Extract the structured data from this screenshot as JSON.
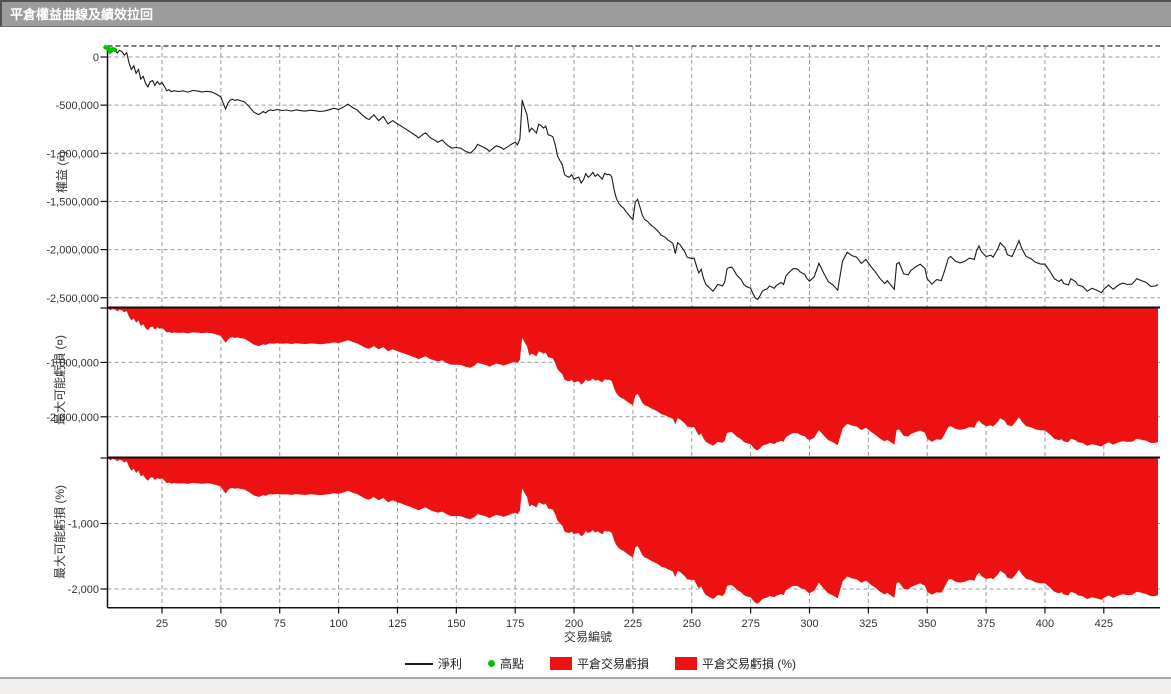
{
  "window": {
    "title": "平倉權益曲線及績效拉回"
  },
  "colors": {
    "titlebar_bg": "#9c9c9c",
    "titlebar_text": "#ffffff",
    "loss_red": "#ee1111",
    "high_green": "#00c300",
    "equity_line": "#1a1a1a",
    "gridline": "#9b9b9b",
    "axis": "#1c1c1c",
    "tick_text": "#333333"
  },
  "chart_data": {
    "type": "line",
    "description": "Three stacked panels sharing one x-axis: closed-position equity curve (line), maximum possible loss in currency (red area hanging from zero line), maximum possible loss in percent (red area hanging from zero line).",
    "x_axis": {
      "label": "交易編號",
      "range": [
        1,
        448
      ],
      "ticks": [
        25,
        50,
        75,
        100,
        125,
        150,
        175,
        200,
        225,
        250,
        275,
        300,
        325,
        350,
        375,
        400,
        425
      ],
      "grid": true
    },
    "panels": [
      {
        "id": "equity",
        "ylabel": "權益 (¤)",
        "yticks": [
          {
            "value": 0,
            "label": "0"
          },
          {
            "value": -500,
            "label": "-500,000"
          },
          {
            "value": -1000,
            "label": "-1,000,000"
          },
          {
            "value": -1500,
            "label": "-1,500,000"
          },
          {
            "value": -2000,
            "label": "-2,000,000"
          },
          {
            "value": -2500,
            "label": "-2,500,000"
          }
        ]
      },
      {
        "id": "max_loss_currency",
        "ylabel": "最大可能虧損 (¤)",
        "yticks": [
          {
            "value": -1000,
            "label": "-1,000,000"
          },
          {
            "value": -2000,
            "label": "-2,000,000"
          }
        ]
      },
      {
        "id": "max_loss_percent",
        "ylabel": "最大可能虧損 (%)",
        "yticks": [
          {
            "value": -1000,
            "label": "-1,000"
          },
          {
            "value": -2000,
            "label": "-2,000"
          }
        ]
      }
    ],
    "legend": [
      {
        "label": "淨利",
        "swatch": "line",
        "color": "#1a1a1a"
      },
      {
        "label": "高點",
        "swatch": "dot",
        "color": "#00c300"
      },
      {
        "label": "平倉交易虧損",
        "swatch": "rect",
        "color": "#ee1111"
      },
      {
        "label": "平倉交易虧損 (%)",
        "swatch": "rect",
        "color": "#ee1111"
      }
    ],
    "series": {
      "note": "equity_points = [trade_number, equity_in_thousands_of_currency]. Drawdown(¤) = equity - peak; Drawdown(%) = Drawdown(¤) * percent_per_thousand.",
      "peak_equity_thousands": 100,
      "percent_per_thousand": 0.85,
      "high_point_marker_trades": [
        1,
        5
      ],
      "equity_points": [
        [
          1,
          100
        ],
        [
          2,
          95
        ],
        [
          3,
          60
        ],
        [
          4,
          80
        ],
        [
          5,
          75
        ],
        [
          6,
          40
        ],
        [
          7,
          70
        ],
        [
          8,
          55
        ],
        [
          9,
          20
        ],
        [
          10,
          45
        ],
        [
          11,
          -60
        ],
        [
          12,
          -130
        ],
        [
          13,
          -90
        ],
        [
          14,
          -170
        ],
        [
          15,
          -130
        ],
        [
          16,
          -230
        ],
        [
          17,
          -200
        ],
        [
          18,
          -270
        ],
        [
          19,
          -310
        ],
        [
          20,
          -255
        ],
        [
          21,
          -245
        ],
        [
          22,
          -295
        ],
        [
          23,
          -255
        ],
        [
          24,
          -285
        ],
        [
          25,
          -265
        ],
        [
          26,
          -305
        ],
        [
          27,
          -350
        ],
        [
          28,
          -340
        ],
        [
          29,
          -360
        ],
        [
          30,
          -350
        ],
        [
          32,
          -358
        ],
        [
          34,
          -352
        ],
        [
          36,
          -365
        ],
        [
          38,
          -348
        ],
        [
          40,
          -352
        ],
        [
          42,
          -362
        ],
        [
          44,
          -356
        ],
        [
          46,
          -362
        ],
        [
          48,
          -385
        ],
        [
          50,
          -415
        ],
        [
          51,
          -480
        ],
        [
          52,
          -540
        ],
        [
          53,
          -480
        ],
        [
          54,
          -448
        ],
        [
          55,
          -438
        ],
        [
          56,
          -452
        ],
        [
          57,
          -442
        ],
        [
          58,
          -452
        ],
        [
          59,
          -458
        ],
        [
          60,
          -465
        ],
        [
          62,
          -515
        ],
        [
          64,
          -572
        ],
        [
          66,
          -598
        ],
        [
          67,
          -585
        ],
        [
          68,
          -565
        ],
        [
          69,
          -580
        ],
        [
          70,
          -560
        ],
        [
          71,
          -548
        ],
        [
          72,
          -556
        ],
        [
          74,
          -545
        ],
        [
          76,
          -556
        ],
        [
          78,
          -550
        ],
        [
          80,
          -562
        ],
        [
          82,
          -548
        ],
        [
          84,
          -558
        ],
        [
          86,
          -562
        ],
        [
          88,
          -552
        ],
        [
          90,
          -558
        ],
        [
          92,
          -566
        ],
        [
          94,
          -560
        ],
        [
          96,
          -548
        ],
        [
          98,
          -532
        ],
        [
          100,
          -545
        ],
        [
          102,
          -520
        ],
        [
          104,
          -490
        ],
        [
          106,
          -525
        ],
        [
          108,
          -552
        ],
        [
          110,
          -600
        ],
        [
          112,
          -640
        ],
        [
          113,
          -648
        ],
        [
          115,
          -600
        ],
        [
          117,
          -660
        ],
        [
          119,
          -618
        ],
        [
          121,
          -695
        ],
        [
          123,
          -660
        ],
        [
          125,
          -695
        ],
        [
          127,
          -725
        ],
        [
          129,
          -755
        ],
        [
          131,
          -788
        ],
        [
          133,
          -820
        ],
        [
          134,
          -840
        ],
        [
          136,
          -800
        ],
        [
          137,
          -788
        ],
        [
          139,
          -840
        ],
        [
          141,
          -865
        ],
        [
          142,
          -885
        ],
        [
          144,
          -862
        ],
        [
          146,
          -912
        ],
        [
          148,
          -945
        ],
        [
          150,
          -940
        ],
        [
          152,
          -948
        ],
        [
          154,
          -980
        ],
        [
          156,
          -998
        ],
        [
          158,
          -950
        ],
        [
          159,
          -908
        ],
        [
          161,
          -930
        ],
        [
          163,
          -955
        ],
        [
          164,
          -980
        ],
        [
          166,
          -940
        ],
        [
          167,
          -922
        ],
        [
          169,
          -940
        ],
        [
          170,
          -958
        ],
        [
          172,
          -930
        ],
        [
          173,
          -912
        ],
        [
          175,
          -885
        ],
        [
          176,
          -912
        ],
        [
          177,
          -850
        ],
        [
          178,
          -448
        ],
        [
          179,
          -530
        ],
        [
          180,
          -600
        ],
        [
          181,
          -775
        ],
        [
          182,
          -738
        ],
        [
          183,
          -760
        ],
        [
          184,
          -790
        ],
        [
          185,
          -698
        ],
        [
          186,
          -712
        ],
        [
          187,
          -738
        ],
        [
          188,
          -718
        ],
        [
          189,
          -808
        ],
        [
          190,
          -815
        ],
        [
          191,
          -828
        ],
        [
          192,
          -912
        ],
        [
          193,
          -1030
        ],
        [
          194,
          -1075
        ],
        [
          195,
          -1118
        ],
        [
          196,
          -1222
        ],
        [
          197,
          -1240
        ],
        [
          198,
          -1248
        ],
        [
          199,
          -1222
        ],
        [
          200,
          -1270
        ],
        [
          201,
          -1255
        ],
        [
          202,
          -1248
        ],
        [
          203,
          -1308
        ],
        [
          204,
          -1275
        ],
        [
          205,
          -1212
        ],
        [
          206,
          -1248
        ],
        [
          207,
          -1230
        ],
        [
          208,
          -1198
        ],
        [
          209,
          -1240
        ],
        [
          210,
          -1218
        ],
        [
          211,
          -1242
        ],
        [
          212,
          -1268
        ],
        [
          213,
          -1208
        ],
        [
          214,
          -1222
        ],
        [
          215,
          -1218
        ],
        [
          216,
          -1242
        ],
        [
          217,
          -1380
        ],
        [
          218,
          -1468
        ],
        [
          219,
          -1522
        ],
        [
          220,
          -1548
        ],
        [
          221,
          -1568
        ],
        [
          222,
          -1602
        ],
        [
          223,
          -1632
        ],
        [
          224,
          -1662
        ],
        [
          225,
          -1688
        ],
        [
          226,
          -1508
        ],
        [
          227,
          -1478
        ],
        [
          228,
          -1560
        ],
        [
          229,
          -1642
        ],
        [
          230,
          -1688
        ],
        [
          231,
          -1702
        ],
        [
          232,
          -1728
        ],
        [
          233,
          -1752
        ],
        [
          234,
          -1772
        ],
        [
          235,
          -1792
        ],
        [
          236,
          -1818
        ],
        [
          237,
          -1852
        ],
        [
          238,
          -1862
        ],
        [
          239,
          -1878
        ],
        [
          240,
          -1902
        ],
        [
          241,
          -1918
        ],
        [
          242,
          -1938
        ],
        [
          243,
          -2042
        ],
        [
          244,
          -1928
        ],
        [
          245,
          -1948
        ],
        [
          246,
          -1985
        ],
        [
          247,
          -2022
        ],
        [
          248,
          -2078
        ],
        [
          249,
          -2085
        ],
        [
          250,
          -2092
        ],
        [
          251,
          -2088
        ],
        [
          252,
          -2172
        ],
        [
          253,
          -2242
        ],
        [
          254,
          -2205
        ],
        [
          255,
          -2298
        ],
        [
          256,
          -2362
        ],
        [
          257,
          -2385
        ],
        [
          258,
          -2408
        ],
        [
          259,
          -2432
        ],
        [
          260,
          -2400
        ],
        [
          261,
          -2362
        ],
        [
          262,
          -2368
        ],
        [
          263,
          -2378
        ],
        [
          264,
          -2338
        ],
        [
          265,
          -2198
        ],
        [
          266,
          -2185
        ],
        [
          267,
          -2182
        ],
        [
          268,
          -2218
        ],
        [
          269,
          -2262
        ],
        [
          270,
          -2288
        ],
        [
          271,
          -2312
        ],
        [
          272,
          -2358
        ],
        [
          273,
          -2382
        ],
        [
          274,
          -2392
        ],
        [
          275,
          -2402
        ],
        [
          276,
          -2458
        ],
        [
          277,
          -2502
        ],
        [
          278,
          -2518
        ],
        [
          279,
          -2478
        ],
        [
          280,
          -2432
        ],
        [
          281,
          -2415
        ],
        [
          282,
          -2408
        ],
        [
          283,
          -2378
        ],
        [
          284,
          -2388
        ],
        [
          285,
          -2402
        ],
        [
          286,
          -2372
        ],
        [
          287,
          -2355
        ],
        [
          288,
          -2342
        ],
        [
          289,
          -2362
        ],
        [
          290,
          -2272
        ],
        [
          291,
          -2245
        ],
        [
          292,
          -2222
        ],
        [
          293,
          -2198
        ],
        [
          294,
          -2198
        ],
        [
          295,
          -2202
        ],
        [
          296,
          -2232
        ],
        [
          297,
          -2245
        ],
        [
          298,
          -2258
        ],
        [
          299,
          -2302
        ],
        [
          300,
          -2328
        ],
        [
          302,
          -2282
        ],
        [
          304,
          -2142
        ],
        [
          306,
          -2242
        ],
        [
          308,
          -2332
        ],
        [
          310,
          -2368
        ],
        [
          312,
          -2422
        ],
        [
          314,
          -2122
        ],
        [
          316,
          -2028
        ],
        [
          318,
          -2062
        ],
        [
          320,
          -2078
        ],
        [
          322,
          -2142
        ],
        [
          324,
          -2102
        ],
        [
          326,
          -2172
        ],
        [
          328,
          -2232
        ],
        [
          330,
          -2302
        ],
        [
          332,
          -2352
        ],
        [
          333,
          -2322
        ],
        [
          335,
          -2382
        ],
        [
          336,
          -2412
        ],
        [
          337,
          -2148
        ],
        [
          338,
          -2132
        ],
        [
          340,
          -2252
        ],
        [
          342,
          -2262
        ],
        [
          343,
          -2218
        ],
        [
          345,
          -2182
        ],
        [
          347,
          -2152
        ],
        [
          349,
          -2195
        ],
        [
          350,
          -2302
        ],
        [
          352,
          -2358
        ],
        [
          354,
          -2312
        ],
        [
          356,
          -2322
        ],
        [
          357,
          -2248
        ],
        [
          359,
          -2088
        ],
        [
          360,
          -2072
        ],
        [
          362,
          -2122
        ],
        [
          364,
          -2138
        ],
        [
          366,
          -2122
        ],
        [
          368,
          -2088
        ],
        [
          370,
          -2102
        ],
        [
          371,
          -2008
        ],
        [
          372,
          -1962
        ],
        [
          373,
          -2022
        ],
        [
          375,
          -2072
        ],
        [
          377,
          -2058
        ],
        [
          378,
          -2078
        ],
        [
          380,
          -1992
        ],
        [
          381,
          -1928
        ],
        [
          383,
          -1978
        ],
        [
          384,
          -2052
        ],
        [
          386,
          -2072
        ],
        [
          387,
          -2022
        ],
        [
          389,
          -1908
        ],
        [
          390,
          -1978
        ],
        [
          392,
          -2072
        ],
        [
          394,
          -2092
        ],
        [
          396,
          -2132
        ],
        [
          398,
          -2148
        ],
        [
          400,
          -2152
        ],
        [
          402,
          -2222
        ],
        [
          404,
          -2302
        ],
        [
          406,
          -2332
        ],
        [
          407,
          -2312
        ],
        [
          408,
          -2352
        ],
        [
          410,
          -2368
        ],
        [
          411,
          -2302
        ],
        [
          413,
          -2332
        ],
        [
          414,
          -2368
        ],
        [
          416,
          -2382
        ],
        [
          418,
          -2432
        ],
        [
          420,
          -2402
        ],
        [
          422,
          -2422
        ],
        [
          424,
          -2448
        ],
        [
          425,
          -2412
        ],
        [
          427,
          -2368
        ],
        [
          429,
          -2412
        ],
        [
          431,
          -2372
        ],
        [
          433,
          -2348
        ],
        [
          435,
          -2362
        ],
        [
          437,
          -2358
        ],
        [
          439,
          -2302
        ],
        [
          441,
          -2322
        ],
        [
          443,
          -2342
        ],
        [
          445,
          -2382
        ],
        [
          447,
          -2378
        ],
        [
          448,
          -2362
        ]
      ]
    }
  }
}
